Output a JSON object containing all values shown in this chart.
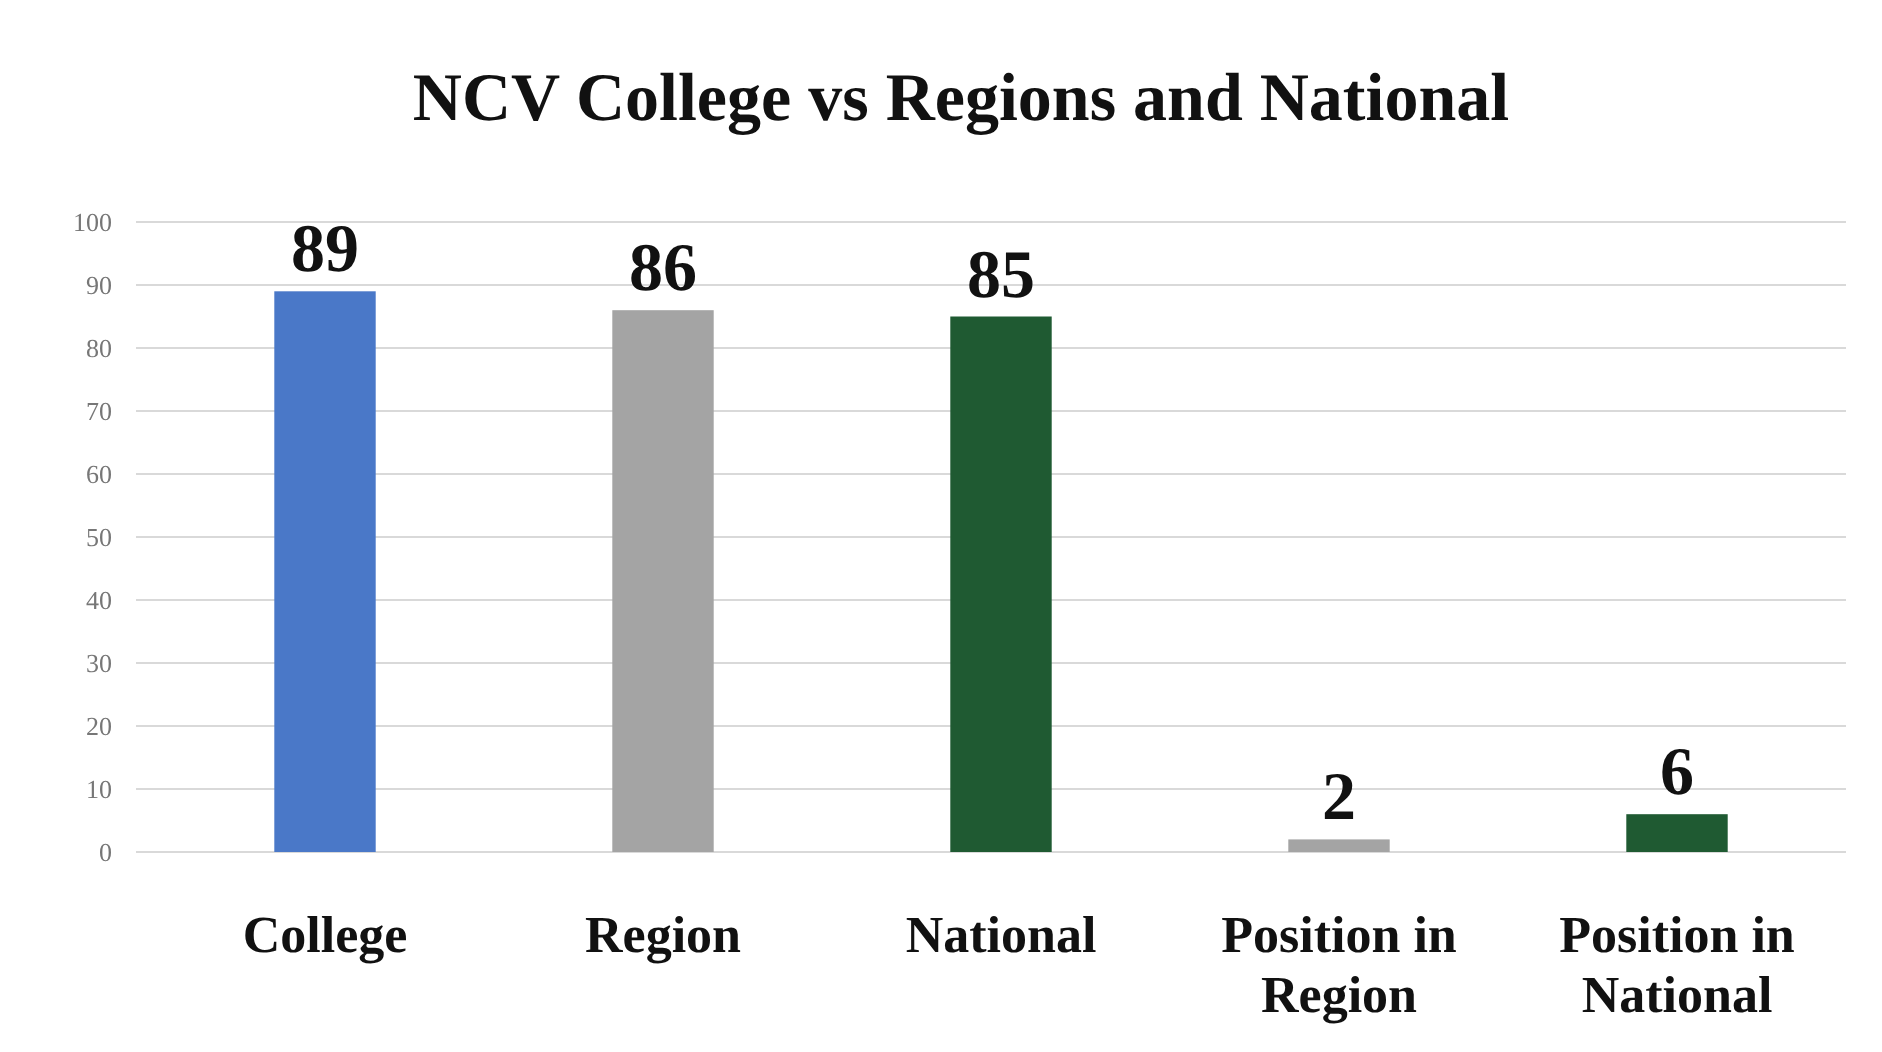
{
  "chart_data": {
    "type": "bar",
    "title": "NCV College vs Regions and National",
    "categories": [
      "College",
      "Region",
      "National",
      "Position in Region",
      "Position in National"
    ],
    "values": [
      89,
      86,
      85,
      2,
      6
    ],
    "colors": [
      "#4a78c8",
      "#a4a4a4",
      "#1f5a32",
      "#a4a4a4",
      "#1f5a32"
    ],
    "ylim": [
      0,
      100
    ],
    "yticks": [
      0,
      10,
      20,
      30,
      40,
      50,
      60,
      70,
      80,
      90,
      100
    ],
    "grid": "y",
    "data_labels": true
  }
}
